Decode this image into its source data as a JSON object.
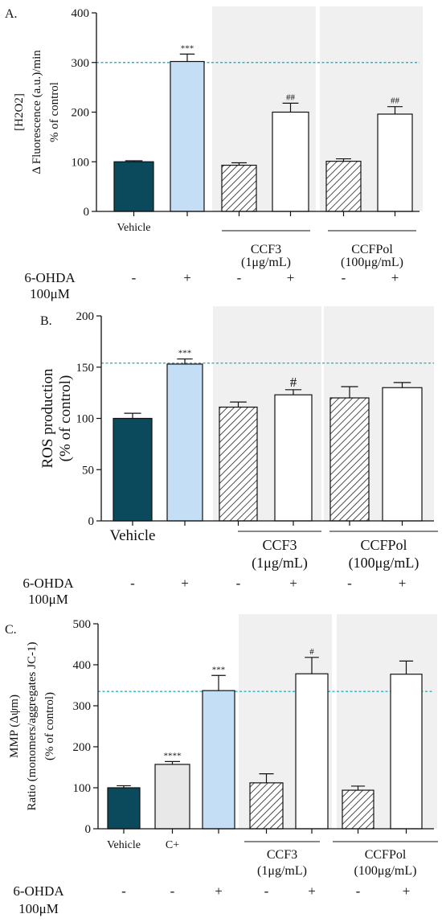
{
  "colors": {
    "vehicle": "#0b4a5c",
    "ohda": "#c3def5",
    "cplus": "#e8e8e8",
    "white": "#ffffff",
    "shade": "#f0f0f0",
    "dashed": "#29b5c6",
    "axis": "#111111"
  },
  "chart_data": [
    {
      "panel_label": "A.",
      "type": "bar",
      "ylabel_lines": [
        "[H2O2]",
        "Δ Fluorescence (a.u.)/min",
        "% of control"
      ],
      "ylim": [
        0,
        400
      ],
      "yticks": [
        "0",
        "100",
        "200",
        "300",
        "400"
      ],
      "reference_line": 300,
      "bars": [
        {
          "value": 100,
          "err": 2,
          "fill": "vehicle",
          "stars": "",
          "label": "Vehicle"
        },
        {
          "value": 302,
          "err": 15,
          "fill": "ohda",
          "stars": "***",
          "label": ""
        },
        {
          "value": 93,
          "err": 5,
          "fill": "hatch",
          "stars": "",
          "label": ""
        },
        {
          "value": 200,
          "err": 18,
          "fill": "white",
          "stars": "##",
          "label": ""
        },
        {
          "value": 101,
          "err": 5,
          "fill": "hatch",
          "stars": "",
          "label": ""
        },
        {
          "value": 196,
          "err": 15,
          "fill": "white",
          "stars": "##",
          "label": ""
        }
      ],
      "groups": [
        {
          "name": "CCF3",
          "conc": "(1μg/mL)"
        },
        {
          "name": "CCFPol",
          "conc": "(100μg/mL)"
        }
      ],
      "ohda_label": [
        "6-OHDA",
        "100μM"
      ],
      "ohda_signs": [
        "-",
        "+",
        "-",
        "+",
        "-",
        "+"
      ]
    },
    {
      "panel_label": "B.",
      "type": "bar",
      "ylabel_lines": [
        "ROS production",
        "(% of control)"
      ],
      "ylim": [
        0,
        200
      ],
      "yticks": [
        "0",
        "50",
        "100",
        "150",
        "200"
      ],
      "reference_line": 154,
      "bars": [
        {
          "value": 100,
          "err": 5,
          "fill": "vehicle",
          "stars": "",
          "label": "Vehicle"
        },
        {
          "value": 153,
          "err": 5,
          "fill": "ohda",
          "stars": "***",
          "label": ""
        },
        {
          "value": 111,
          "err": 5,
          "fill": "hatch",
          "stars": "",
          "label": ""
        },
        {
          "value": 123,
          "err": 5,
          "fill": "white",
          "stars": "#",
          "label": ""
        },
        {
          "value": 120,
          "err": 11,
          "fill": "hatch",
          "stars": "",
          "label": ""
        },
        {
          "value": 130,
          "err": 5,
          "fill": "white",
          "stars": "",
          "label": ""
        }
      ],
      "groups": [
        {
          "name": "CCF3",
          "conc": "(1μg/mL)"
        },
        {
          "name": "CCFPol",
          "conc": "(100μg/mL)"
        }
      ],
      "ohda_label": [
        "6-OHDA",
        "100μM"
      ],
      "ohda_signs": [
        "-",
        "+",
        "-",
        "+",
        "-",
        "+"
      ]
    },
    {
      "panel_label": "C.",
      "type": "bar",
      "ylabel_lines": [
        "MMP (Δψm)",
        "Ratio (monomers/aggregates JC-1)",
        "(% of control)"
      ],
      "ylim": [
        0,
        500
      ],
      "yticks": [
        "0",
        "100",
        "200",
        "300",
        "400",
        "500"
      ],
      "reference_line": 335,
      "bars": [
        {
          "value": 100,
          "err": 5,
          "fill": "vehicle",
          "stars": "",
          "label": "Vehicle"
        },
        {
          "value": 157,
          "err": 7,
          "fill": "cplus",
          "stars": "****",
          "label": "C+"
        },
        {
          "value": 337,
          "err": 37,
          "fill": "ohda",
          "stars": "***",
          "label": ""
        },
        {
          "value": 112,
          "err": 22,
          "fill": "hatch",
          "stars": "",
          "label": ""
        },
        {
          "value": 378,
          "err": 40,
          "fill": "white",
          "stars": "#",
          "label": ""
        },
        {
          "value": 94,
          "err": 10,
          "fill": "hatch",
          "stars": "",
          "label": ""
        },
        {
          "value": 377,
          "err": 32,
          "fill": "white",
          "stars": "",
          "label": ""
        }
      ],
      "groups": [
        {
          "name": "CCF3",
          "conc": "(1μg/mL)"
        },
        {
          "name": "CCFPol",
          "conc": "(100μg/mL)"
        }
      ],
      "ohda_label": [
        "6-OHDA",
        "100μM"
      ],
      "ohda_signs": [
        "-",
        "-",
        "+",
        "-",
        "+",
        "-",
        "+"
      ]
    }
  ]
}
